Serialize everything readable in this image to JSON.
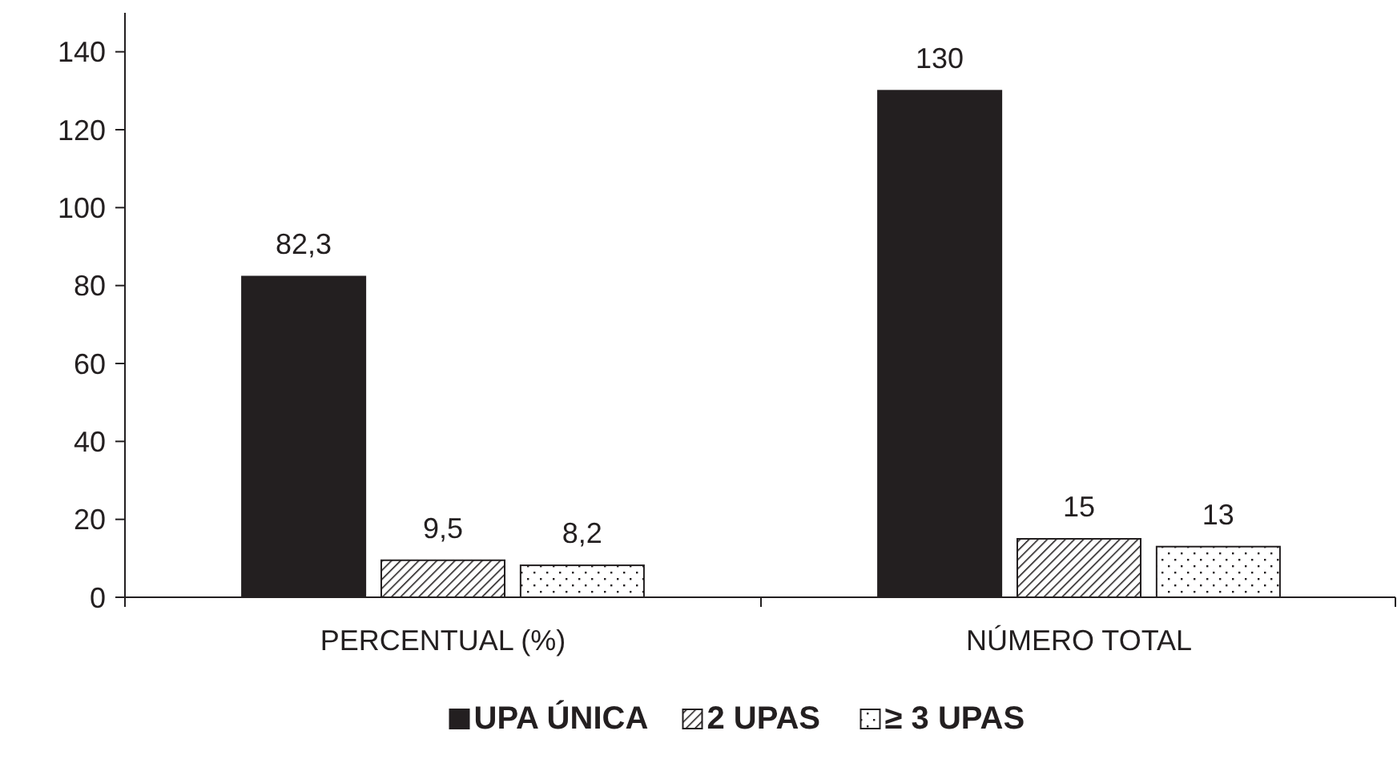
{
  "chart_data": {
    "type": "bar",
    "categories": [
      "PERCENTUAL (%)",
      "NÚMERO TOTAL"
    ],
    "series": [
      {
        "name": "UPA ÚNICA",
        "color": "#231f20",
        "values": [
          82.3,
          130
        ],
        "value_labels": [
          "82,3",
          "130"
        ]
      },
      {
        "name": "2 UPAS",
        "color": "#231f20",
        "values": [
          9.5,
          15
        ],
        "value_labels": [
          "9,5",
          "15"
        ]
      },
      {
        "name": "≥ 3 UPAS",
        "color": "#231f20",
        "values": [
          8.2,
          13
        ],
        "value_labels": [
          "8,2",
          "13"
        ]
      }
    ],
    "ylim": [
      0,
      150
    ],
    "yticks": [
      0,
      20,
      40,
      60,
      80,
      100,
      120,
      140
    ],
    "grid": false,
    "legend": "bottom"
  }
}
